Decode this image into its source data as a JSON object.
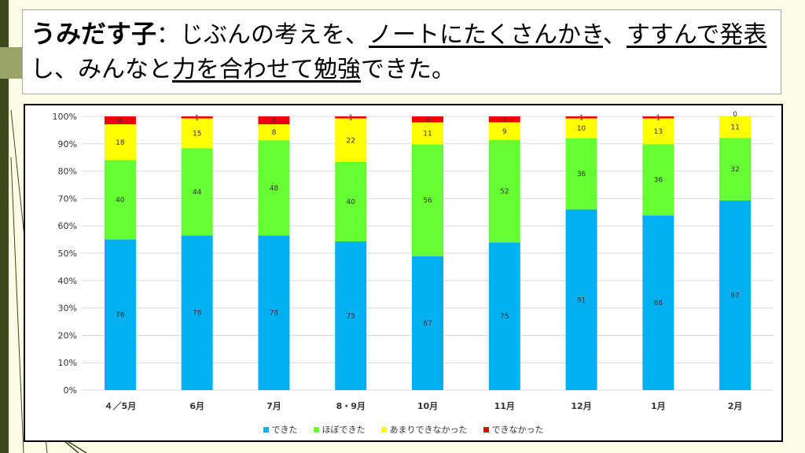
{
  "title": {
    "line1": [
      {
        "text": "うみだす子",
        "style": "head"
      },
      {
        "text": "：じぶんの考えを、",
        "style": ""
      },
      {
        "text": "ノートにたくさんかき",
        "style": "u"
      },
      {
        "text": "、",
        "style": ""
      },
      {
        "text": "すすんで",
        "style": "u"
      },
      {
        "text": "発表",
        "style": "u"
      }
    ],
    "line2": [
      {
        "text": "し、みんなと",
        "style": ""
      },
      {
        "text": "力を合わせて",
        "style": "u"
      },
      {
        "text": "勉強",
        "style": "u"
      },
      {
        "text": "できた。",
        "style": ""
      }
    ]
  },
  "chart_data": {
    "type": "bar",
    "stacked": true,
    "normalized": true,
    "categories": [
      "４／5月",
      "6月",
      "7月",
      "8・9月",
      "10月",
      "11月",
      "12月",
      "1月",
      "2月"
    ],
    "series": [
      {
        "name": "できた",
        "color": "#00b0f0",
        "values": [
          76,
          78,
          78,
          75,
          67,
          75,
          91,
          88,
          97
        ]
      },
      {
        "name": "ほぼできた",
        "color": "#66ff33",
        "values": [
          40,
          44,
          48,
          40,
          56,
          52,
          36,
          36,
          32
        ]
      },
      {
        "name": "あまりできなかった",
        "color": "#ffff00",
        "values": [
          18,
          15,
          8,
          22,
          11,
          9,
          10,
          13,
          11
        ]
      },
      {
        "name": "できなかった",
        "color": "#ee0000",
        "values": [
          4,
          1,
          4,
          1,
          3,
          3,
          1,
          1,
          0
        ]
      }
    ],
    "y_ticks": [
      "0%",
      "10%",
      "20%",
      "30%",
      "40%",
      "50%",
      "60%",
      "70%",
      "80%",
      "90%",
      "100%"
    ],
    "ylim": [
      0,
      100
    ],
    "grid": true,
    "legend_position": "bottom"
  }
}
